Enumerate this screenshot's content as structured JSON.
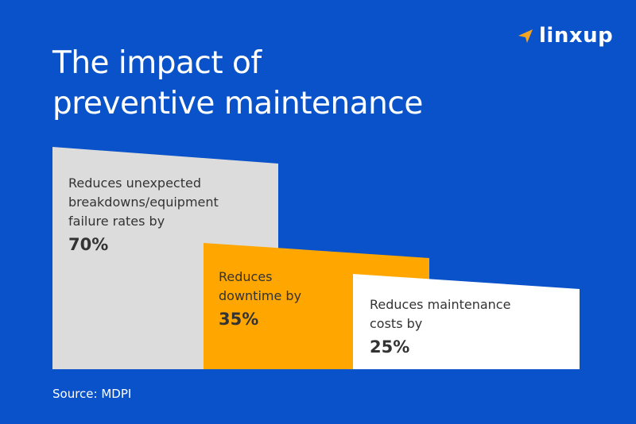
{
  "title": {
    "line1": "The impact of",
    "line2": "preventive maintenance"
  },
  "logo": {
    "name": "linxup",
    "icon": "arrow-icon",
    "accent_color": "#f7a51e"
  },
  "blocks": [
    {
      "label_lines": [
        "Reduces unexpected",
        "breakdowns/equipment",
        "failure rates by"
      ],
      "value": "70%",
      "color": "#dcdcdc"
    },
    {
      "label_lines": [
        "Reduces",
        "downtime by"
      ],
      "value": "35%",
      "color": "#ffa700"
    },
    {
      "label_lines": [
        "Reduces maintenance",
        "costs by"
      ],
      "value": "25%",
      "color": "#ffffff"
    }
  ],
  "source": "Source: MDPI",
  "background_color": "#0a52c9"
}
